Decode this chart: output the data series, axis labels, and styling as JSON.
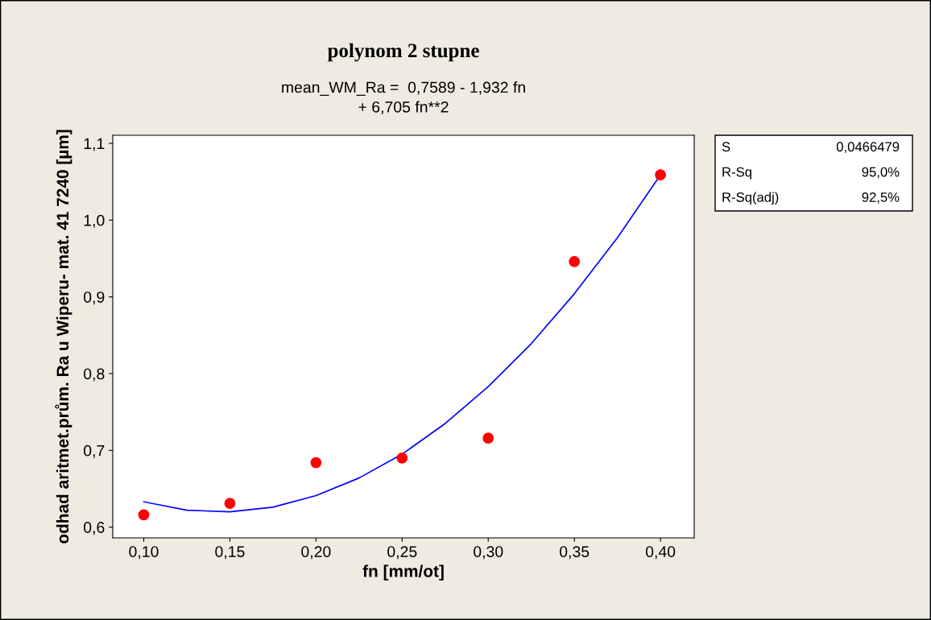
{
  "chart_data": {
    "type": "scatter",
    "title": "polynom 2 stupne",
    "subtitle": "mean_WM_Ra =  0,7589 - 1,932 fn\n+ 6,705 fn**2",
    "xlabel": "fn [mm/ot]",
    "ylabel": "odhad aritmet.prům. Ra u Wiperu- mat. 41 7240 [µm]",
    "series": [
      {
        "color": "#ff0000",
        "marker": "circle",
        "x": [
          0.1,
          0.15,
          0.2,
          0.25,
          0.3,
          0.35,
          0.4
        ],
        "values": [
          0.616,
          0.631,
          0.684,
          0.69,
          0.716,
          0.946,
          1.059
        ]
      },
      {
        "type": "line",
        "color": "#0000ff",
        "marker": "none",
        "line_style": "solid",
        "x": [
          0.1,
          0.125,
          0.15,
          0.175,
          0.2,
          0.225,
          0.25,
          0.275,
          0.3,
          0.325,
          0.35,
          0.375,
          0.4
        ],
        "values": [
          0.633,
          0.622,
          0.62,
          0.626,
          0.641,
          0.664,
          0.695,
          0.735,
          0.783,
          0.839,
          0.904,
          0.977,
          1.059
        ]
      }
    ],
    "xlim": [
      0.082,
      0.4196
    ],
    "ylim": [
      0.586,
      1.1105
    ],
    "xticks": [
      {
        "value": 0.1,
        "label": "0,10"
      },
      {
        "value": 0.15,
        "label": "0,15"
      },
      {
        "value": 0.2,
        "label": "0,20"
      },
      {
        "value": 0.25,
        "label": "0,25"
      },
      {
        "value": 0.3,
        "label": "0,30"
      },
      {
        "value": 0.35,
        "label": "0,35"
      },
      {
        "value": 0.4,
        "label": "0,40"
      }
    ],
    "yticks": [
      {
        "value": 0.6,
        "label": "0,6"
      },
      {
        "value": 0.7,
        "label": "0,7"
      },
      {
        "value": 0.8,
        "label": "0,8"
      },
      {
        "value": 0.9,
        "label": "0,9"
      },
      {
        "value": 1.0,
        "label": "1,0"
      },
      {
        "value": 1.1,
        "label": "1,1"
      }
    ],
    "grid": false,
    "legend": false,
    "annotations": [
      "S",
      "0,0466479",
      "R-Sq",
      "95,0%",
      "R-Sq(adj)",
      "92,5%"
    ]
  }
}
